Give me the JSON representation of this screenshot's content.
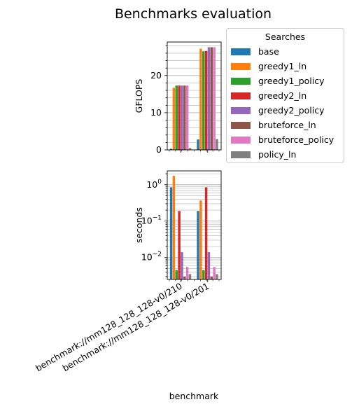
{
  "figure_title": "Benchmarks evaluation",
  "x_axis_label": "benchmark",
  "legend": {
    "title": "Searches",
    "items": [
      {
        "label": "base",
        "color": "#1f77b4"
      },
      {
        "label": "greedy1_ln",
        "color": "#ff7f0e"
      },
      {
        "label": "greedy1_policy",
        "color": "#2ca02c"
      },
      {
        "label": "greedy2_ln",
        "color": "#d62728"
      },
      {
        "label": "greedy2_policy",
        "color": "#9467bd"
      },
      {
        "label": "bruteforce_ln",
        "color": "#8c564b"
      },
      {
        "label": "bruteforce_policy",
        "color": "#e377c2"
      },
      {
        "label": "policy_ln",
        "color": "#7f7f7f"
      }
    ]
  },
  "chart_data": [
    {
      "type": "bar",
      "title": "",
      "xlabel": "",
      "ylabel": "GFLOPS",
      "yscale": "linear",
      "ylim": [
        0,
        29
      ],
      "yticks": [
        0,
        10,
        20
      ],
      "grid": "y",
      "categories": [
        "benchmark://mm128_128_128-v0/210",
        "benchmark://mm128_128_128-v0/201"
      ],
      "series": [
        {
          "name": "base",
          "values": [
            0.3,
            2.8
          ]
        },
        {
          "name": "greedy1_ln",
          "values": [
            16.7,
            27.2
          ]
        },
        {
          "name": "greedy1_policy",
          "values": [
            17.3,
            26.5
          ]
        },
        {
          "name": "greedy2_ln",
          "values": [
            17.3,
            26.6
          ]
        },
        {
          "name": "greedy2_policy",
          "values": [
            17.3,
            27.6
          ]
        },
        {
          "name": "bruteforce_ln",
          "values": [
            17.3,
            27.6
          ]
        },
        {
          "name": "bruteforce_policy",
          "values": [
            17.3,
            27.6
          ]
        },
        {
          "name": "policy_ln",
          "values": [
            0.5,
            2.9
          ]
        }
      ]
    },
    {
      "type": "bar",
      "title": "",
      "xlabel": "benchmark",
      "ylabel": "seconds",
      "yscale": "log",
      "ylim": [
        0.0025,
        2.4
      ],
      "yticks": [
        "10^-2",
        "10^-1",
        "10^0"
      ],
      "grid": "y",
      "categories": [
        "benchmark://mm128_128_128-v0/210",
        "benchmark://mm128_128_128-v0/201"
      ],
      "series": [
        {
          "name": "base",
          "values": [
            0.85,
            0.19
          ]
        },
        {
          "name": "greedy1_ln",
          "values": [
            1.75,
            0.37
          ]
        },
        {
          "name": "greedy1_policy",
          "values": [
            0.0045,
            0.0045
          ]
        },
        {
          "name": "greedy2_ln",
          "values": [
            0.19,
            0.85
          ]
        },
        {
          "name": "greedy2_policy",
          "values": [
            0.014,
            0.014
          ]
        },
        {
          "name": "bruteforce_ln",
          "values": [
            0.003,
            0.003
          ]
        },
        {
          "name": "bruteforce_policy",
          "values": [
            0.0055,
            0.0055
          ]
        },
        {
          "name": "policy_ln",
          "values": [
            0.0035,
            0.0035
          ]
        }
      ]
    }
  ]
}
